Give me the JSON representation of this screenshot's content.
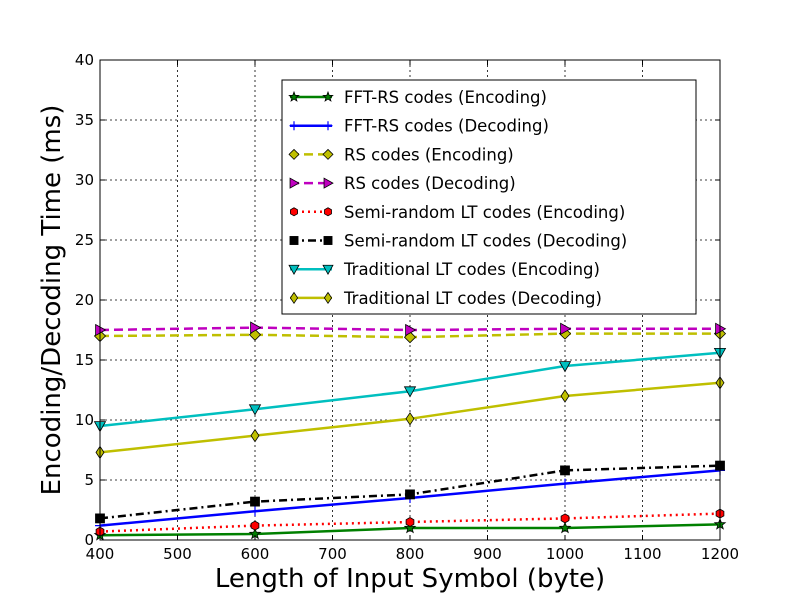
{
  "chart_data": {
    "type": "line",
    "title": "",
    "xlabel": "Length of Input Symbol (byte)",
    "ylabel": "Encoding/Decoding Time (ms)",
    "xlim": [
      400,
      1200
    ],
    "ylim": [
      0,
      40
    ],
    "xticks": [
      400,
      500,
      600,
      700,
      800,
      900,
      1000,
      1100,
      1200
    ],
    "yticks": [
      0,
      5,
      10,
      15,
      20,
      25,
      30,
      35,
      40
    ],
    "grid": true,
    "legend_position": "upper-right",
    "x": [
      400,
      600,
      800,
      1000,
      1200
    ],
    "series": [
      {
        "name": "FFT-RS codes (Encoding)",
        "values": [
          0.4,
          0.5,
          1.0,
          1.0,
          1.3
        ],
        "color": "#008000",
        "line": "solid",
        "marker": "star"
      },
      {
        "name": "FFT-RS codes (Decoding)",
        "values": [
          1.2,
          2.4,
          3.5,
          4.7,
          5.8
        ],
        "color": "#0000ff",
        "line": "solid",
        "marker": "plus"
      },
      {
        "name": "RS codes (Encoding)",
        "values": [
          17.0,
          17.1,
          16.9,
          17.2,
          17.2
        ],
        "color": "#bfbf00",
        "line": "dashed",
        "marker": "diamond"
      },
      {
        "name": "RS codes (Decoding)",
        "values": [
          17.5,
          17.7,
          17.5,
          17.6,
          17.6
        ],
        "color": "#bf00bf",
        "line": "dashed",
        "marker": "triangle-right"
      },
      {
        "name": "Semi-random LT codes (Encoding)",
        "values": [
          0.7,
          1.2,
          1.5,
          1.8,
          2.2
        ],
        "color": "#ff0000",
        "line": "dotted",
        "marker": "hexagon"
      },
      {
        "name": "Semi-random LT codes (Decoding)",
        "values": [
          1.8,
          3.2,
          3.8,
          5.8,
          6.2
        ],
        "color": "#000000",
        "line": "dashdot",
        "marker": "square"
      },
      {
        "name": "Traditional LT codes (Encoding)",
        "values": [
          9.5,
          10.9,
          12.4,
          14.5,
          15.6
        ],
        "color": "#00bfbf",
        "line": "solid",
        "marker": "triangle-down"
      },
      {
        "name": "Traditional LT codes (Decoding)",
        "values": [
          7.3,
          8.7,
          10.1,
          12.0,
          13.1
        ],
        "color": "#bfbf00",
        "line": "solid",
        "marker": "thin-diamond"
      }
    ]
  }
}
